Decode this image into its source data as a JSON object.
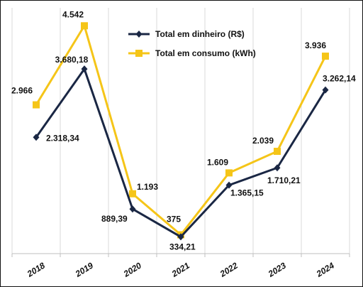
{
  "chart_data": {
    "type": "line",
    "categories": [
      "2018",
      "2019",
      "2020",
      "2021",
      "2022",
      "2023",
      "2024"
    ],
    "series": [
      {
        "name": "Total em dinheiro (R$)",
        "color": "#1a2744",
        "marker": "diamond",
        "values": [
          2318.34,
          3680.18,
          889.39,
          334.21,
          1365.15,
          1710.21,
          3262.14
        ],
        "labels": [
          "2.318,34",
          "3.680,18",
          "889,39",
          "334,21",
          "1.365,15",
          "1.710,21",
          "3.262,14"
        ]
      },
      {
        "name": "Total em consumo (kWh)",
        "color": "#f5c518",
        "marker": "square",
        "values": [
          2966,
          4542,
          1193,
          375,
          1609,
          2039,
          3936
        ],
        "labels": [
          "2.966",
          "4.542",
          "1.193",
          "375",
          "1.609",
          "2.039",
          "3.936"
        ]
      }
    ],
    "ylim": [
      0,
      4900
    ],
    "grid": "vertical",
    "legend": "top-center",
    "title": "",
    "xlabel": "",
    "ylabel": ""
  }
}
